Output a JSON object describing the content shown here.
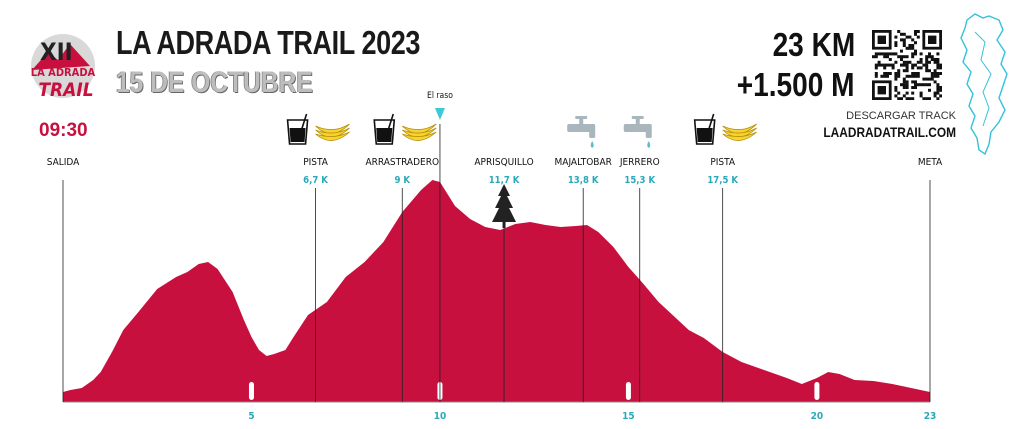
{
  "header": {
    "title": "LA ADRADA TRAIL 2023",
    "date": "15 DE OCTUBRE",
    "distance": "23 KM",
    "elevation_gain": "+1.500 M",
    "download_label": "DESCARGAR TRACK",
    "download_url": "LAADRADATRAIL.COM",
    "logo_text": [
      "XII",
      "LA ADRADA",
      "TRAIL"
    ],
    "start_time": "09:30"
  },
  "colors": {
    "profile_fill": "#c8103f",
    "accent_teal": "#2aa9b8",
    "map_line": "#35c2d8",
    "text_dark": "#1a1a1a"
  },
  "chart_data": {
    "type": "area",
    "xlabel": "",
    "ylabel": "",
    "xlim": [
      0,
      23
    ],
    "x_ticks": [
      5,
      10,
      15,
      20,
      23
    ],
    "grid": false,
    "profile": [
      [
        0.0,
        10
      ],
      [
        0.2,
        12
      ],
      [
        0.5,
        14
      ],
      [
        0.8,
        22
      ],
      [
        1.0,
        30
      ],
      [
        1.3,
        50
      ],
      [
        1.6,
        72
      ],
      [
        2.0,
        90
      ],
      [
        2.5,
        113
      ],
      [
        3.0,
        125
      ],
      [
        3.3,
        130
      ],
      [
        3.6,
        138
      ],
      [
        3.85,
        140
      ],
      [
        4.1,
        133
      ],
      [
        4.5,
        110
      ],
      [
        4.8,
        82
      ],
      [
        5.0,
        65
      ],
      [
        5.2,
        52
      ],
      [
        5.4,
        46
      ],
      [
        5.6,
        48
      ],
      [
        5.9,
        52
      ],
      [
        6.1,
        64
      ],
      [
        6.5,
        87
      ],
      [
        7.0,
        100
      ],
      [
        7.5,
        125
      ],
      [
        8.0,
        140
      ],
      [
        8.5,
        160
      ],
      [
        9.0,
        190
      ],
      [
        9.5,
        212
      ],
      [
        9.8,
        222
      ],
      [
        10.0,
        220
      ],
      [
        10.4,
        196
      ],
      [
        10.8,
        183
      ],
      [
        11.2,
        175
      ],
      [
        11.6,
        172
      ],
      [
        12.0,
        178
      ],
      [
        12.4,
        180
      ],
      [
        12.8,
        177
      ],
      [
        13.2,
        175
      ],
      [
        13.6,
        176
      ],
      [
        13.9,
        177
      ],
      [
        14.2,
        170
      ],
      [
        14.6,
        155
      ],
      [
        15.0,
        135
      ],
      [
        15.4,
        118
      ],
      [
        15.8,
        100
      ],
      [
        16.2,
        86
      ],
      [
        16.6,
        72
      ],
      [
        17.0,
        64
      ],
      [
        17.5,
        50
      ],
      [
        18.0,
        40
      ],
      [
        18.6,
        32
      ],
      [
        19.2,
        24
      ],
      [
        19.6,
        18
      ],
      [
        20.0,
        24
      ],
      [
        20.3,
        30
      ],
      [
        20.6,
        28
      ],
      [
        21.0,
        22
      ],
      [
        21.5,
        21
      ],
      [
        22.0,
        18
      ],
      [
        22.5,
        14
      ],
      [
        23.0,
        10
      ]
    ],
    "waypoints": [
      {
        "name": "SALIDA",
        "km": 0,
        "km_label": "",
        "icons": []
      },
      {
        "name": "PISTA",
        "km": 6.7,
        "km_label": "6,7 K",
        "icons": [
          "drink-icon",
          "banana-icon"
        ]
      },
      {
        "name": "ARRASTRADERO",
        "km": 9,
        "km_label": "9 K",
        "icons": [
          "drink-icon",
          "banana-icon"
        ]
      },
      {
        "name": "APRISQUILLO",
        "km": 11.7,
        "km_label": "11,7 K",
        "icons": []
      },
      {
        "name": "MAJALTOBAR",
        "km": 13.8,
        "km_label": "13,8 K",
        "icons": [
          "water-tap-icon"
        ]
      },
      {
        "name": "JERRERO",
        "km": 15.3,
        "km_label": "15,3 K",
        "icons": [
          "water-tap-icon"
        ]
      },
      {
        "name": "PISTA",
        "km": 17.5,
        "km_label": "17,5 K",
        "icons": [
          "drink-icon",
          "banana-icon"
        ]
      },
      {
        "name": "META",
        "km": 23,
        "km_label": "",
        "icons": []
      }
    ],
    "summit": {
      "name": "El raso",
      "km": 10.0
    }
  }
}
